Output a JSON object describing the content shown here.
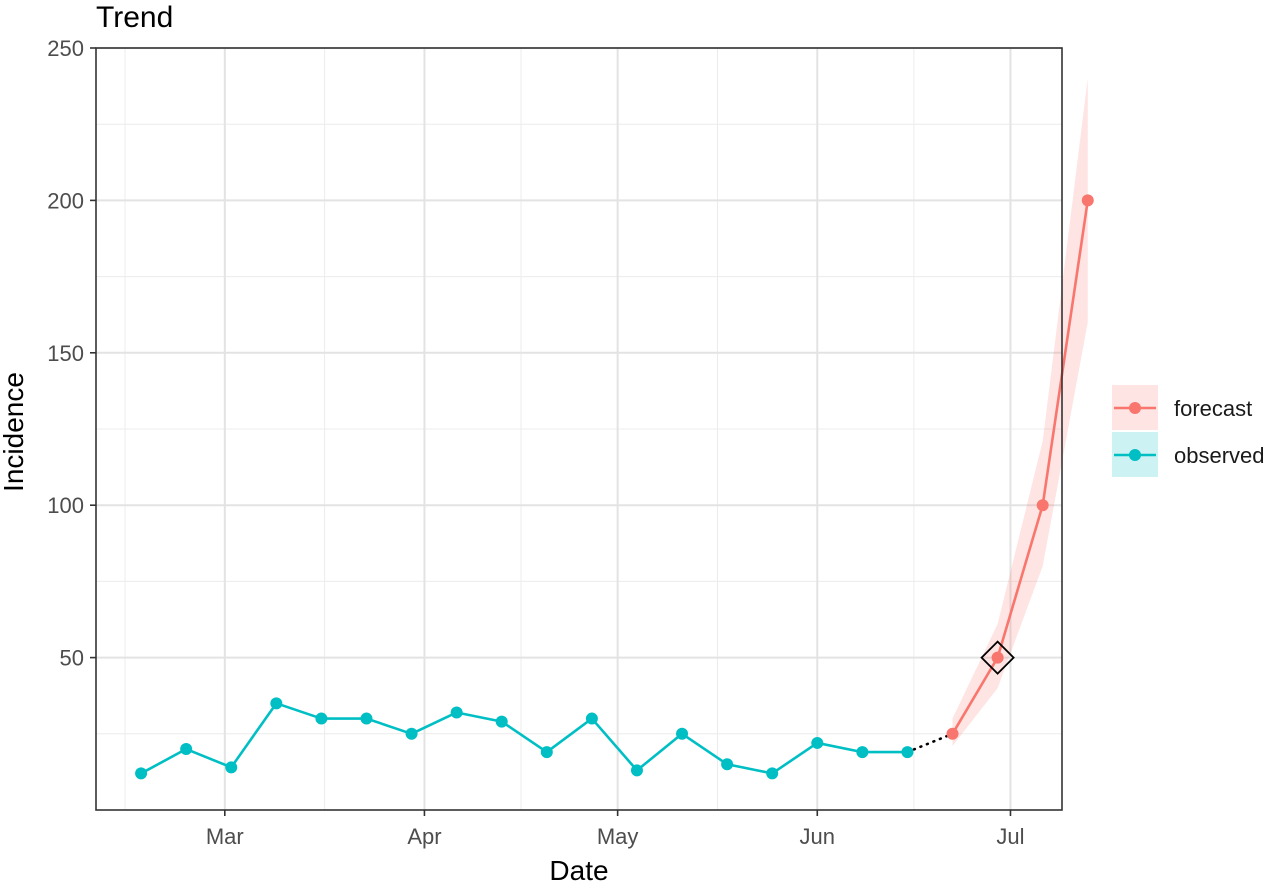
{
  "chart_data": {
    "type": "line",
    "title": "Trend",
    "xlabel": "Date",
    "ylabel": "Incidence",
    "ylim": [
      0,
      250
    ],
    "xlim": [
      "2020-02-10",
      "2020-07-09"
    ],
    "grid": true,
    "legend_position": "right",
    "y_ticks": [
      50,
      100,
      150,
      200,
      250
    ],
    "y_tick_labels": [
      "50",
      "100",
      "150",
      "200",
      "250"
    ],
    "x_ticks": [
      "2020-03-01",
      "2020-04-01",
      "2020-05-01",
      "2020-06-01",
      "2020-07-01"
    ],
    "x_tick_labels": [
      "Mar",
      "Apr",
      "May",
      "Jun",
      "Jul"
    ],
    "series": [
      {
        "name": "observed",
        "color": "#00BFC4",
        "x": [
          "2020-02-17",
          "2020-02-24",
          "2020-03-02",
          "2020-03-09",
          "2020-03-16",
          "2020-03-23",
          "2020-03-30",
          "2020-04-06",
          "2020-04-13",
          "2020-04-20",
          "2020-04-27",
          "2020-05-04",
          "2020-05-11",
          "2020-05-18",
          "2020-05-25",
          "2020-06-01",
          "2020-06-08",
          "2020-06-15"
        ],
        "values": [
          12,
          20,
          14,
          35,
          30,
          30,
          25,
          32,
          29,
          19,
          30,
          13,
          25,
          15,
          12,
          22,
          19,
          19
        ]
      },
      {
        "name": "forecast",
        "color": "#F8766D",
        "x": [
          "2020-06-22",
          "2020-06-29",
          "2020-07-06",
          "2020-07-13"
        ],
        "values": [
          25,
          50,
          100,
          200
        ],
        "lower": [
          21,
          40,
          80,
          160
        ],
        "upper": [
          30,
          61,
          121,
          240
        ]
      }
    ],
    "connector": {
      "style": "dotted",
      "x": [
        "2020-06-15",
        "2020-06-22"
      ],
      "values": [
        19,
        25
      ]
    },
    "highlight": {
      "shape": "diamond",
      "x": "2020-06-29",
      "value": 50
    }
  }
}
